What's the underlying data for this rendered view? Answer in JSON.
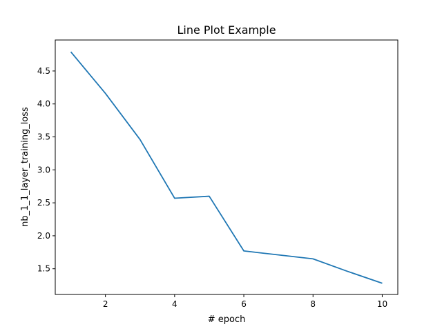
{
  "chart_data": {
    "type": "line",
    "title": "Line Plot Example",
    "xlabel": "# epoch",
    "ylabel": "nb_1_1_layer_training_loss",
    "x": [
      1,
      2,
      3,
      4,
      5,
      6,
      7,
      8,
      9,
      10
    ],
    "series": [
      {
        "values": [
          4.79,
          4.16,
          3.46,
          2.57,
          2.6,
          1.77,
          1.71,
          1.65,
          1.46,
          1.28
        ],
        "color": "#1f77b4"
      }
    ],
    "xlim": [
      0.55,
      10.45
    ],
    "ylim": [
      1.11,
      4.97
    ],
    "xticks": [
      2,
      4,
      6,
      8,
      10
    ],
    "yticks": [
      1.5,
      2.0,
      2.5,
      3.0,
      3.5,
      4.0,
      4.5
    ],
    "xtick_labels": [
      "2",
      "4",
      "6",
      "8",
      "10"
    ],
    "ytick_labels": [
      "1.5",
      "2.0",
      "2.5",
      "3.0",
      "3.5",
      "4.0",
      "4.5"
    ],
    "grid": false,
    "legend": "none"
  }
}
